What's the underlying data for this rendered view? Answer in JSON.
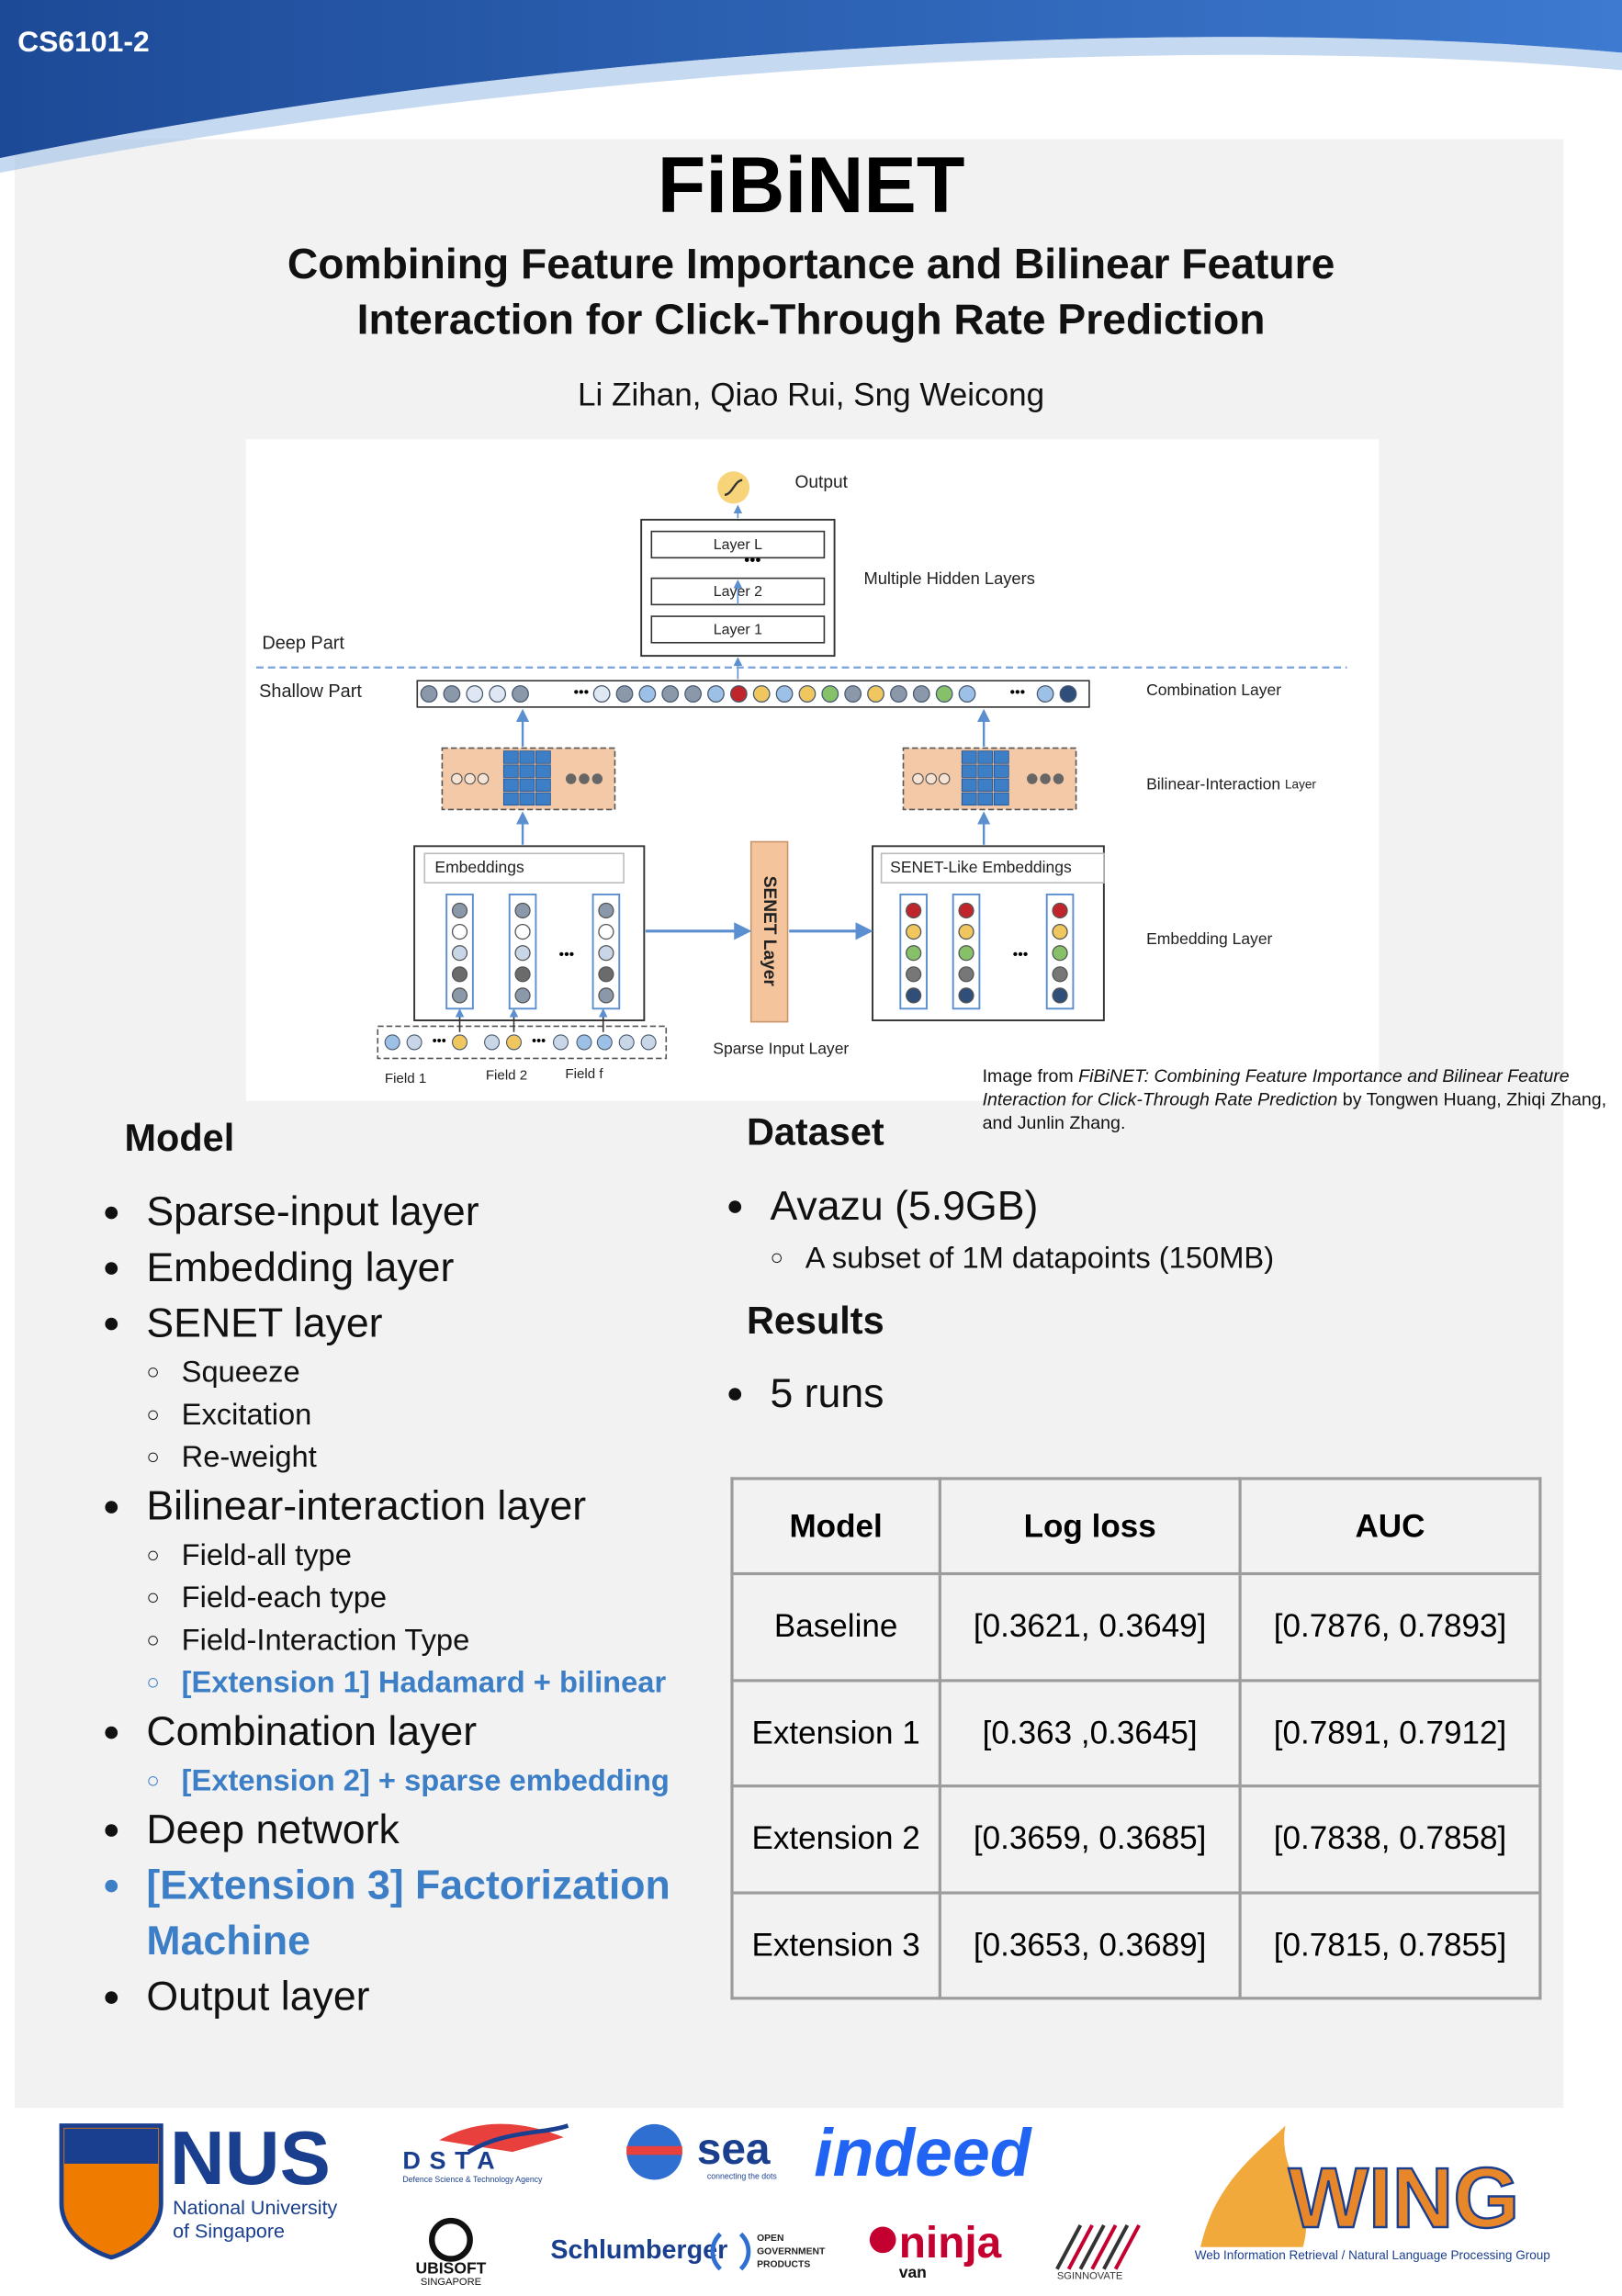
{
  "header": {
    "course": "CS6101-2"
  },
  "title": "FiBiNET",
  "subtitle": [
    "Combining Feature Importance and Bilinear Feature",
    "Interaction for Click-Through Rate Prediction"
  ],
  "authors": "Li Zihan, Qiao Rui, Sng Weicong",
  "figure": {
    "output": "Output",
    "layers": [
      "Layer L",
      "Layer 2",
      "Layer 1"
    ],
    "hidden": "Multiple Hidden Layers",
    "deep": "Deep Part",
    "shallow": "Shallow Part",
    "combination": "Combination Layer",
    "bilinear": "Bilinear-Interaction",
    "bilinear_suffix": "Layer",
    "embeddings": "Embeddings",
    "senet": "SENET Layer",
    "senet_like": "SENET-Like Embeddings",
    "embedding_layer": "Embedding Layer",
    "sparse": "Sparse Input Layer",
    "fields": [
      "Field 1",
      "Field 2",
      "Field f"
    ]
  },
  "caption": {
    "lead": "Image from",
    "source": "FiBiNET: Combining Feature Importance and Bilinear Feature Interaction for Click-Through Rate Prediction",
    "credit": "by Tongwen Huang, Zhiqi Zhang, and Junlin Zhang."
  },
  "model": {
    "heading": "Model",
    "items": [
      {
        "text": "Sparse-input layer"
      },
      {
        "text": "Embedding layer"
      },
      {
        "text": "SENET layer",
        "sub": [
          {
            "text": "Squeeze"
          },
          {
            "text": "Excitation"
          },
          {
            "text": "Re-weight"
          }
        ]
      },
      {
        "text": "Bilinear-interaction layer",
        "sub": [
          {
            "text": "Field-all type"
          },
          {
            "text": "Field-each type"
          },
          {
            "text": "Field-Interaction Type"
          },
          {
            "text": "[Extension 1] Hadamard + bilinear",
            "color": "#3d7fc7"
          }
        ]
      },
      {
        "text": "Combination layer",
        "sub": [
          {
            "text": "[Extension 2] + sparse embedding",
            "color": "#3d7fc7"
          }
        ]
      },
      {
        "text": "Deep network"
      },
      {
        "text": "[Extension 3] Factorization Machine",
        "color": "#3d7fc7"
      },
      {
        "text": "Output layer"
      }
    ]
  },
  "dataset": {
    "heading": "Dataset",
    "items": [
      {
        "text": "Avazu (5.9GB)",
        "sub": [
          {
            "text": "A subset of 1M datapoints (150MB)"
          }
        ]
      }
    ]
  },
  "results": {
    "heading": "Results",
    "items": [
      {
        "text": "5 runs"
      }
    ]
  },
  "table": {
    "header": [
      "Model",
      "Log loss",
      "AUC"
    ],
    "rows": [
      [
        "Baseline",
        "[0.3621, 0.3649]",
        "[0.7876, 0.7893]"
      ],
      [
        "Extension 1",
        "[0.363 ,0.3645]",
        "[0.7891, 0.7912]"
      ],
      [
        "Extension 2",
        "[0.3659, 0.3685]",
        "[0.7838, 0.7858]"
      ],
      [
        "Extension 3",
        "[0.3653, 0.3689]",
        "[0.7815, 0.7855]"
      ]
    ]
  },
  "logos": {
    "nus": "NUS",
    "nus_name": [
      "National University",
      "of Singapore"
    ],
    "dsta": "DSTA",
    "dsta_name": "Defence Science & Technology Agency",
    "sea": "sea",
    "sea_tag": "connecting the dots",
    "indeed": "indeed",
    "wing": "WING",
    "wing_name": "Web Information Retrieval / Natural Language Processing Group",
    "ubisoft": "UBISOFT",
    "ubisoft_loc": "SINGAPORE",
    "schlumberger": "Schlumberger",
    "ogp": [
      "OPEN",
      "GOVERNMENT",
      "PRODUCTS"
    ],
    "ninja": "ninja",
    "van": "van",
    "sginnovate": "SGINNOVATE"
  }
}
